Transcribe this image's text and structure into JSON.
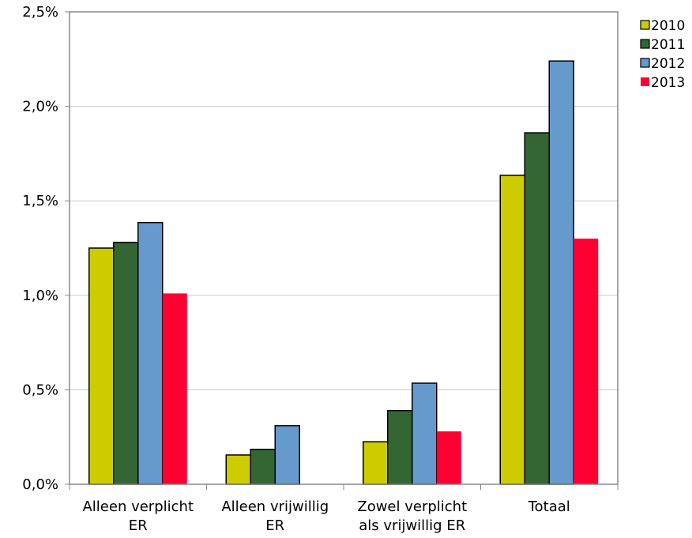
{
  "chart_data": {
    "type": "bar",
    "categories": [
      [
        "Alleen verplicht",
        "ER"
      ],
      [
        "Alleen vrijwillig",
        "ER"
      ],
      [
        "Zowel verplicht",
        "als vrijwillig ER"
      ],
      [
        "Totaal"
      ]
    ],
    "series": [
      {
        "name": "2010",
        "color": "#cccc00",
        "values": [
          1.25,
          0.155,
          0.225,
          1.635
        ]
      },
      {
        "name": "2011",
        "color": "#336633",
        "values": [
          1.28,
          0.185,
          0.39,
          1.86
        ]
      },
      {
        "name": "2012",
        "color": "#6699cc",
        "values": [
          1.385,
          0.31,
          0.535,
          2.24
        ]
      },
      {
        "name": "2013",
        "color": "#ff0033",
        "values": [
          1.01,
          0,
          0.28,
          1.3
        ]
      }
    ],
    "y_ticks": [
      "0,0%",
      "0,5%",
      "1,0%",
      "1,5%",
      "2,0%",
      "2,5%"
    ],
    "ylim": [
      0,
      2.5
    ],
    "grid": true,
    "legend": "top-right",
    "title": "",
    "xlabel": "",
    "ylabel": ""
  }
}
